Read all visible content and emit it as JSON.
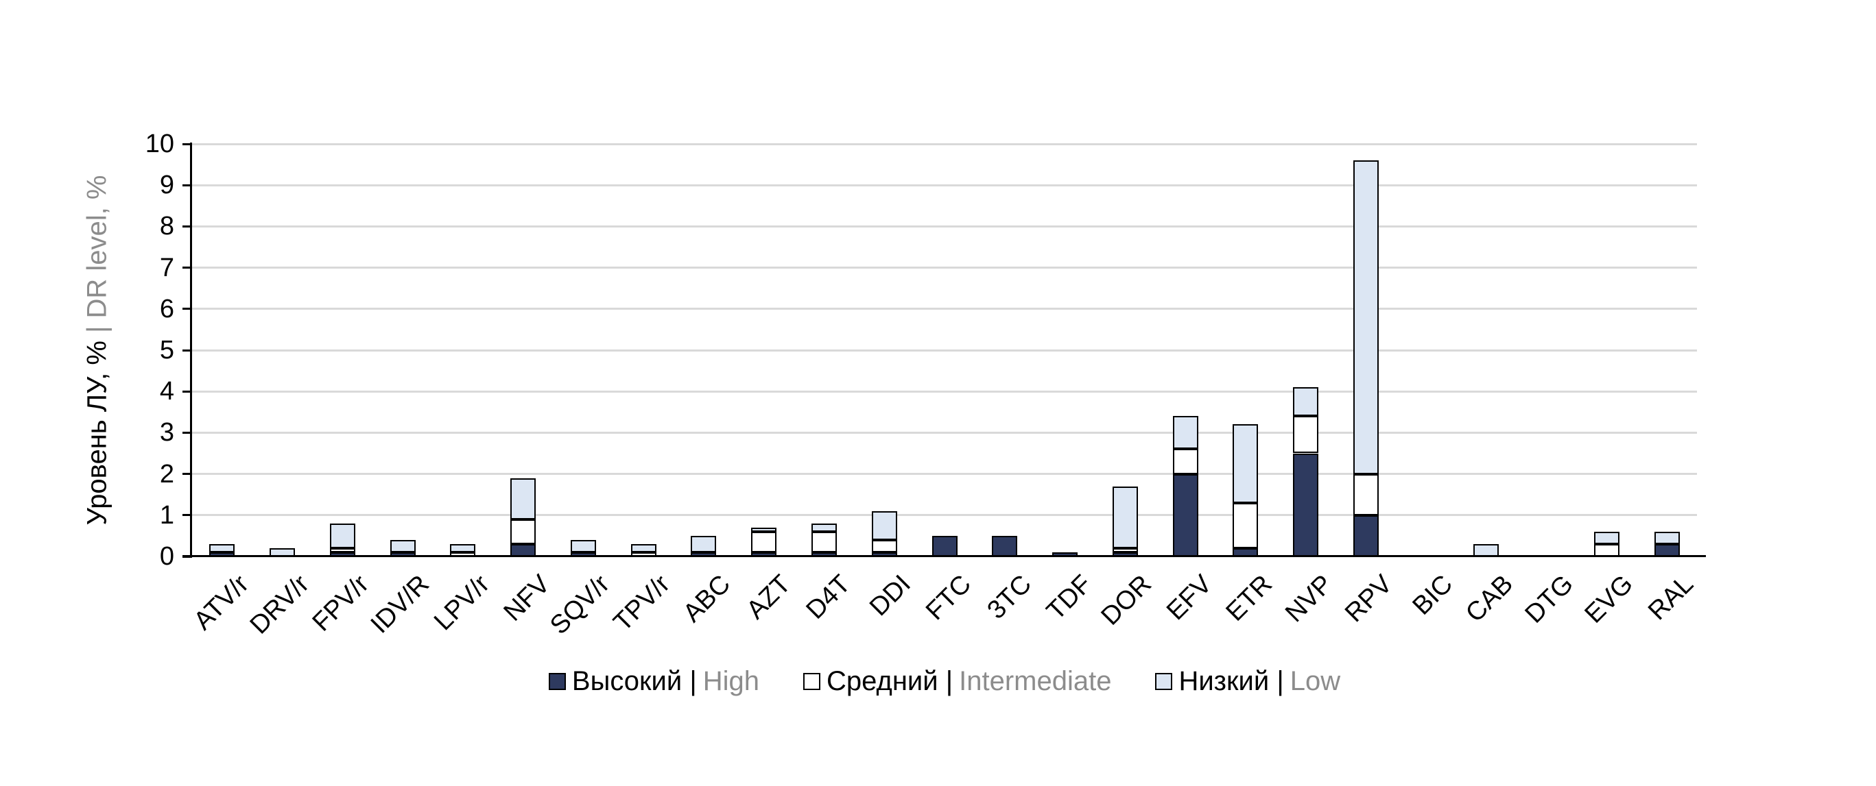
{
  "chart_data": {
    "type": "bar",
    "stacked": true,
    "orientation": "vertical",
    "grid": "horizontal",
    "gridline_color": "#D9D9D9",
    "axis_color": "#000000",
    "ylabel_black": "Уровень ЛУ, % ",
    "ylabel_gray": "| DR level, %",
    "ylim": [
      0,
      10
    ],
    "yticks": [
      0,
      1,
      2,
      3,
      4,
      5,
      6,
      7,
      8,
      9,
      10
    ],
    "categories": [
      "ATV/r",
      "DRV/r",
      "FPV/r",
      "IDV/R",
      "LPV/r",
      "NFV",
      "SQV/r",
      "TPV/r",
      "ABC",
      "AZT",
      "D4T",
      "DDI",
      "FTC",
      "3TC",
      "TDF",
      "DOR",
      "EFV",
      "ETR",
      "NVP",
      "RPV",
      "BIC",
      "CAB",
      "DTG",
      "EVG",
      "RAL"
    ],
    "series": [
      {
        "key": "high",
        "legend_black": "Высокий |",
        "legend_gray": "High",
        "color": "#2E3A5F",
        "values": [
          0.1,
          0,
          0.1,
          0.1,
          0,
          0.3,
          0.1,
          0,
          0.1,
          0.1,
          0.1,
          0.1,
          0.5,
          0.5,
          0.1,
          0.1,
          2.0,
          0.2,
          2.5,
          1.0,
          0,
          0,
          0,
          0,
          0.3
        ]
      },
      {
        "key": "intermediate",
        "legend_black": "Средний |",
        "legend_gray": "Intermediate",
        "color": "#FFFFFF",
        "values": [
          0,
          0,
          0.1,
          0,
          0.1,
          0.6,
          0,
          0.1,
          0,
          0.5,
          0.5,
          0.3,
          0,
          0,
          0,
          0.1,
          0.6,
          1.1,
          0.9,
          1.0,
          0,
          0,
          0,
          0.3,
          0
        ]
      },
      {
        "key": "low",
        "legend_black": "Низкий |",
        "legend_gray": "Low",
        "color": "#DCE6F3",
        "values": [
          0.2,
          0.2,
          0.6,
          0.3,
          0.2,
          1.0,
          0.3,
          0.2,
          0.4,
          0.1,
          0.2,
          0.7,
          0,
          0,
          0,
          1.5,
          0.8,
          1.9,
          0.7,
          7.6,
          0,
          0.3,
          0,
          0.3,
          0.3
        ]
      }
    ],
    "legend_position": "bottom-center"
  }
}
